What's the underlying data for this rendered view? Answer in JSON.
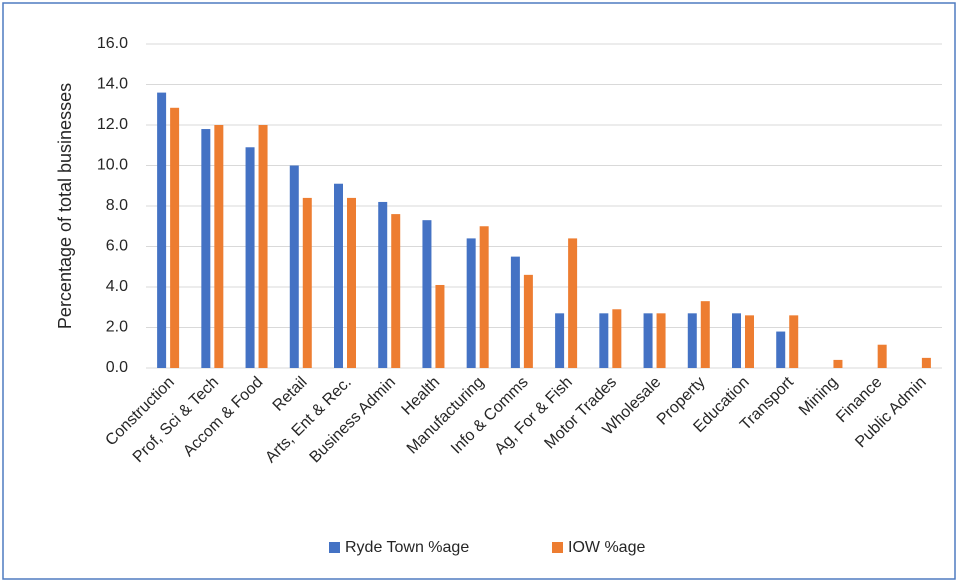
{
  "chart_data": {
    "type": "bar",
    "y_label": "Percentage of total businesses",
    "categories": [
      "Construction",
      "Prof, Sci & Tech",
      "Accom & Food",
      "Retail",
      "Arts, Ent & Rec.",
      "Business Admin",
      "Health",
      "Manufacturing",
      "Info & Comms",
      "Ag, For & Fish",
      "Motor Trades",
      "Wholesale",
      "Property",
      "Education",
      "Transport",
      "Mining",
      "Finance",
      "Public Admin"
    ],
    "series": [
      {
        "name": "Ryde Town %age",
        "color": "#4472c4",
        "values": [
          13.6,
          11.8,
          10.9,
          10.0,
          9.1,
          8.2,
          7.3,
          6.4,
          5.5,
          2.7,
          2.7,
          2.7,
          2.7,
          2.7,
          1.8,
          0,
          0,
          0
        ]
      },
      {
        "name": "IOW %age",
        "color": "#ed7d31",
        "values": [
          12.85,
          12.0,
          12.0,
          8.4,
          8.4,
          7.6,
          4.1,
          7.0,
          4.6,
          6.4,
          2.9,
          2.7,
          3.3,
          2.6,
          2.6,
          0.4,
          1.15,
          0.5
        ]
      }
    ],
    "ylim": [
      0,
      16
    ],
    "yticks": [
      {
        "value": 0,
        "label": "0.0"
      },
      {
        "value": 2,
        "label": "2.0"
      },
      {
        "value": 4,
        "label": "4.0"
      },
      {
        "value": 6,
        "label": "6.0"
      },
      {
        "value": 8,
        "label": "8.0"
      },
      {
        "value": 10,
        "label": "10.0"
      },
      {
        "value": 12,
        "label": "12.0"
      },
      {
        "value": 14,
        "label": "14.0"
      },
      {
        "value": 16,
        "label": "16.0"
      }
    ],
    "grid": true,
    "legend": "bottom"
  }
}
